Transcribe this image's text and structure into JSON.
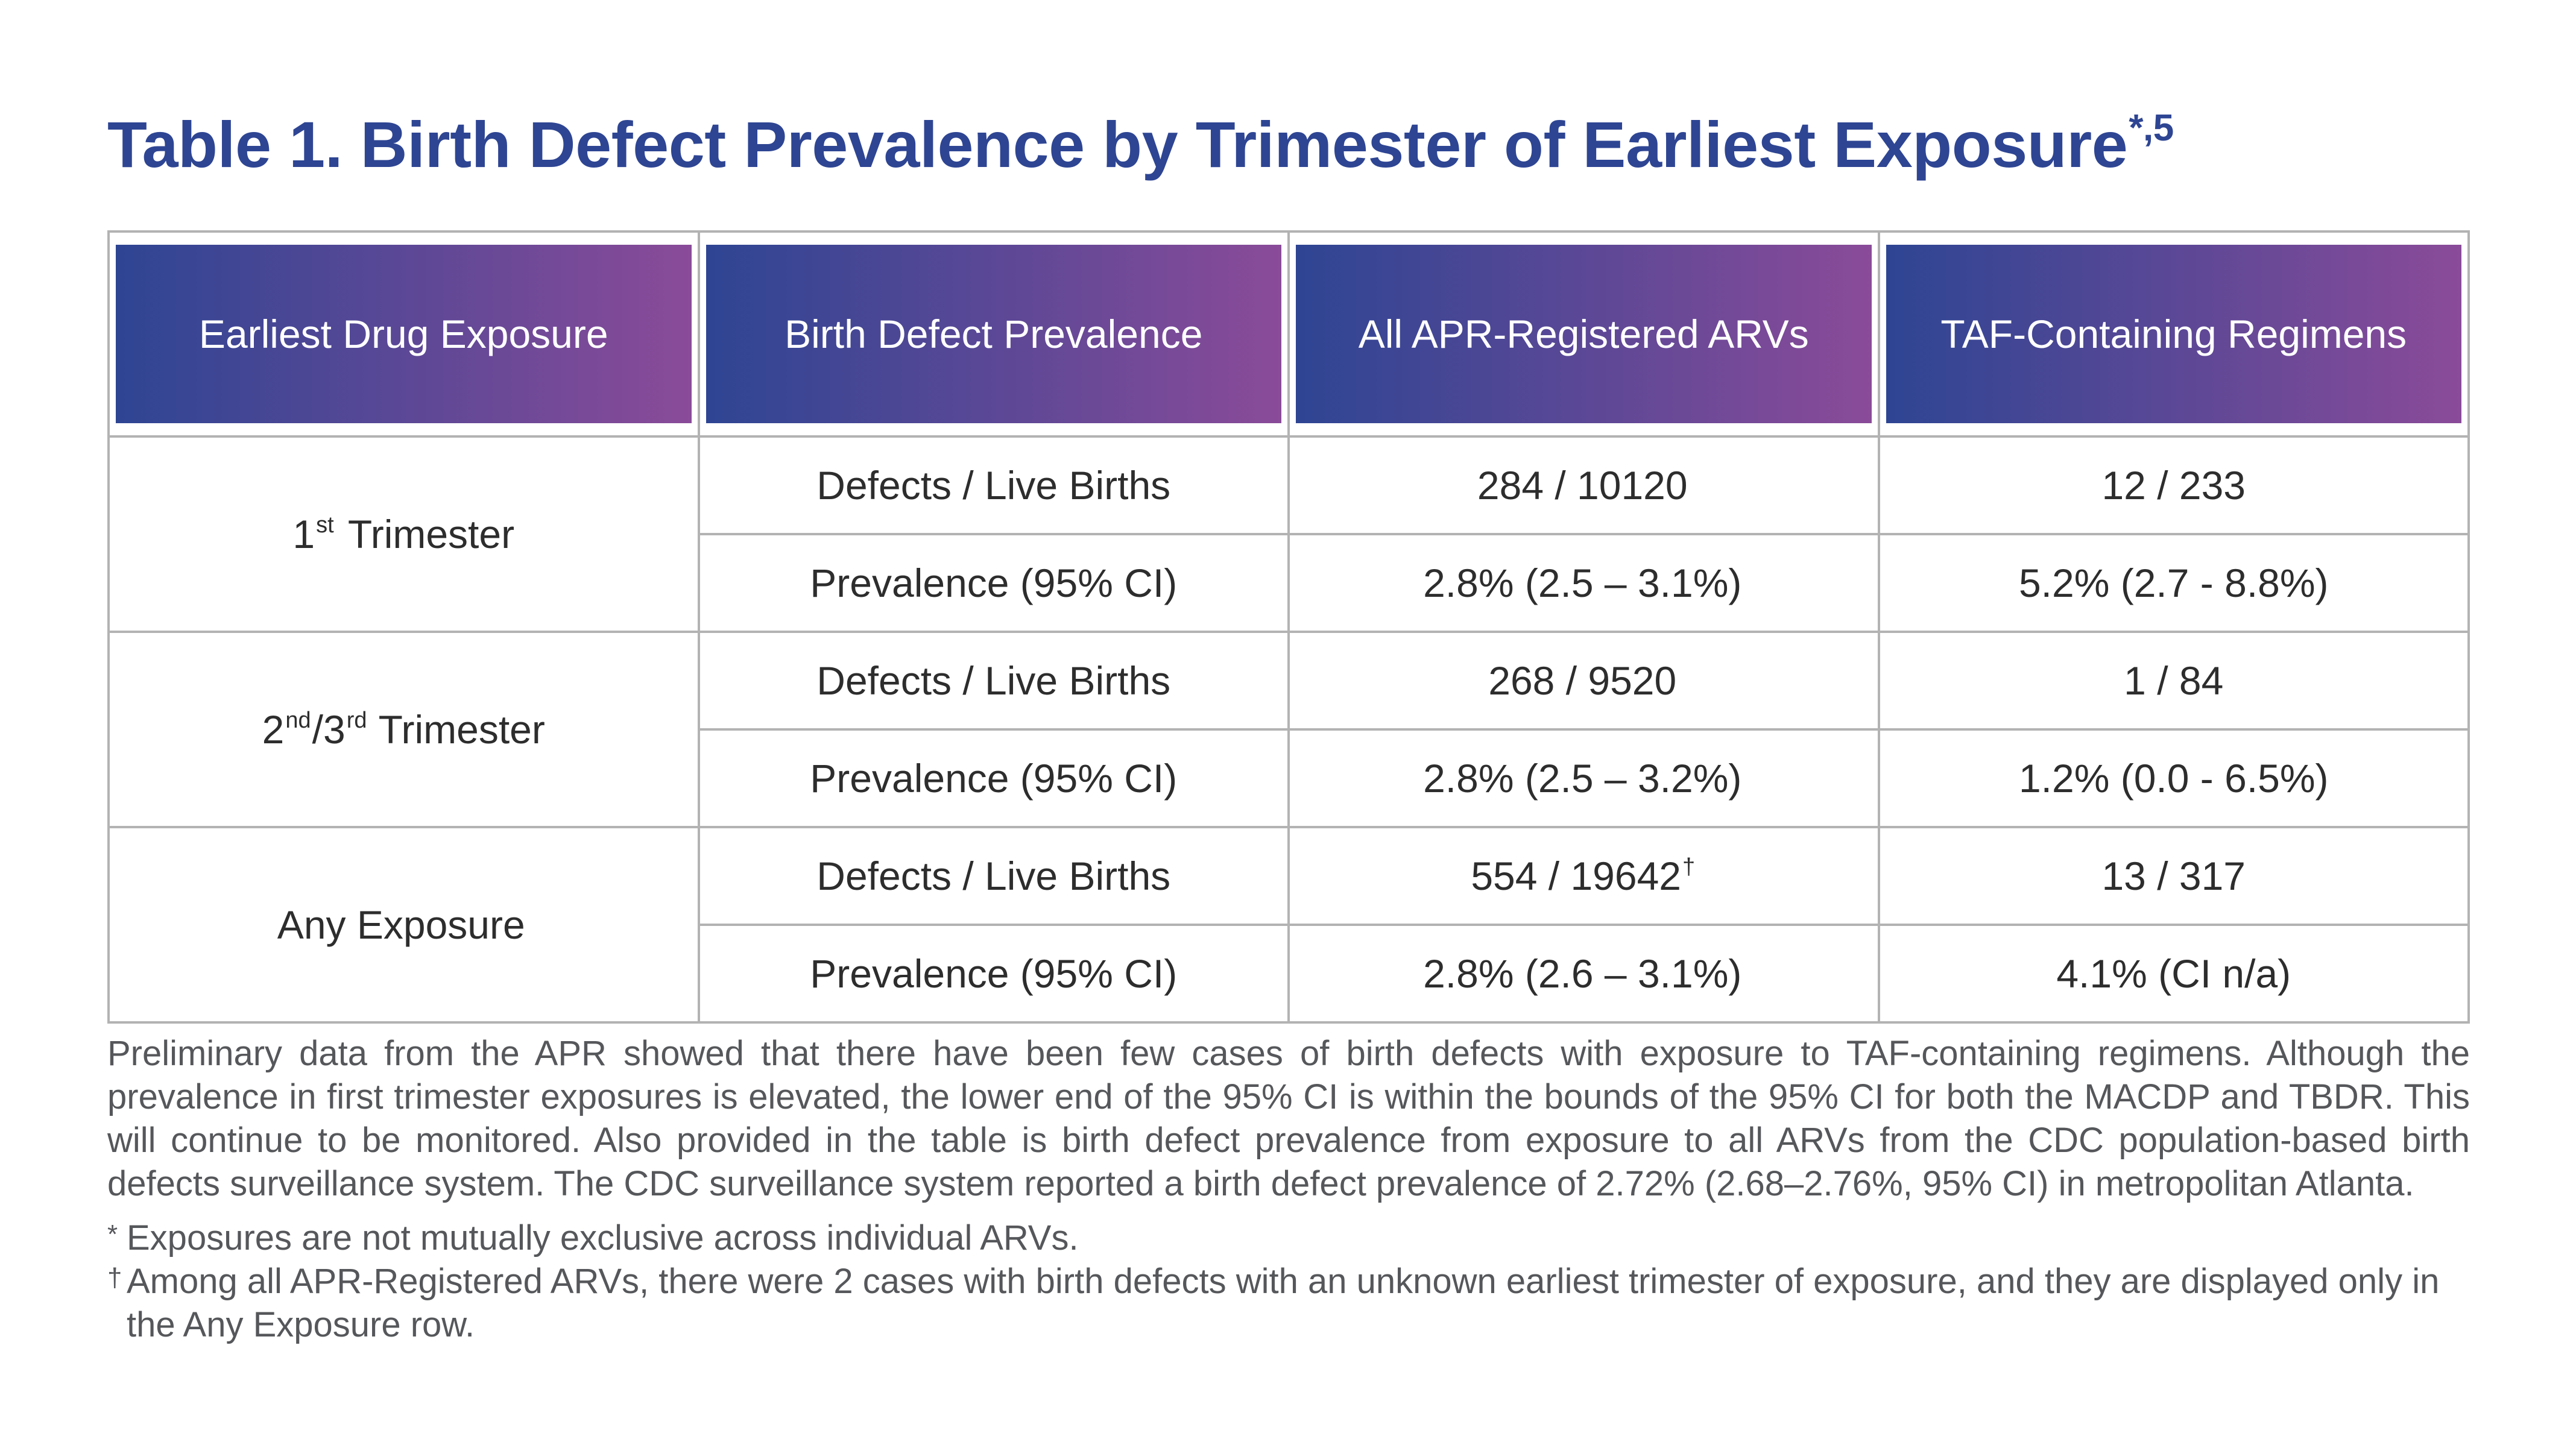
{
  "title": {
    "text": "Table 1. Birth Defect Prevalence by Trimester of Earliest Exposure",
    "sup": "*,5"
  },
  "table": {
    "headers": [
      "Earliest Drug Exposure",
      "Birth Defect Prevalence",
      "All APR-Registered ARVs",
      "TAF-Containing Regimens"
    ],
    "groups": [
      {
        "label_pre": "1",
        "label_sup1": "st",
        "label_mid": "",
        "label_sup2": "",
        "label_post": " Trimester",
        "rows": [
          {
            "metric": "Defects / Live Births",
            "all": "284 / 10120",
            "all_sup": "",
            "taf": "12 / 233"
          },
          {
            "metric": "Prevalence (95% CI)",
            "all": "2.8% (2.5 – 3.1%)",
            "all_sup": "",
            "taf": "5.2% (2.7 - 8.8%)"
          }
        ]
      },
      {
        "label_pre": "2",
        "label_sup1": "nd",
        "label_mid": "/3",
        "label_sup2": "rd",
        "label_post": " Trimester",
        "rows": [
          {
            "metric": "Defects / Live Births",
            "all": "268 / 9520",
            "all_sup": "",
            "taf": "1 / 84"
          },
          {
            "metric": "Prevalence (95% CI)",
            "all": "2.8% (2.5 – 3.2%)",
            "all_sup": "",
            "taf": "1.2% (0.0 - 6.5%)"
          }
        ]
      },
      {
        "label_pre": "Any Exposure",
        "label_sup1": "",
        "label_mid": "",
        "label_sup2": "",
        "label_post": "",
        "rows": [
          {
            "metric": "Defects / Live Births",
            "all": "554 / 19642",
            "all_sup": "†",
            "taf": "13 / 317"
          },
          {
            "metric": "Prevalence (95% CI)",
            "all": "2.8% (2.6 – 3.1%)",
            "all_sup": "",
            "taf": "4.1% (CI n/a)"
          }
        ]
      }
    ]
  },
  "notes": {
    "paragraph": "Preliminary data from the APR  showed that there have been few cases of birth defects with exposure to TAF-containing regimens. Although the prevalence in first trimester exposures is elevated, the lower end of the 95% CI is within the bounds of the 95% CI for both the MACDP and TBDR. This will continue to be monitored. Also provided in the table is birth defect prevalence from exposure to all ARVs from the CDC population-based birth defects surveillance system. The CDC surveillance system reported a birth defect prevalence of 2.72% (2.68–2.76%, 95% CI) in metropolitan Atlanta.",
    "footnotes": [
      {
        "mark": "*",
        "text": "Exposures are not mutually exclusive across individual ARVs."
      },
      {
        "mark": "†",
        "text": "Among all APR-Registered ARVs, there were 2 cases with birth defects with an unknown earliest trimester of exposure, and they are displayed only in the Any Exposure row."
      }
    ]
  },
  "colors": {
    "title": "#2e4593",
    "header_gradient_start": "#2e4593",
    "header_gradient_end": "#8a4b99",
    "border": "#b3b3b3",
    "notes_text": "#55575a"
  }
}
